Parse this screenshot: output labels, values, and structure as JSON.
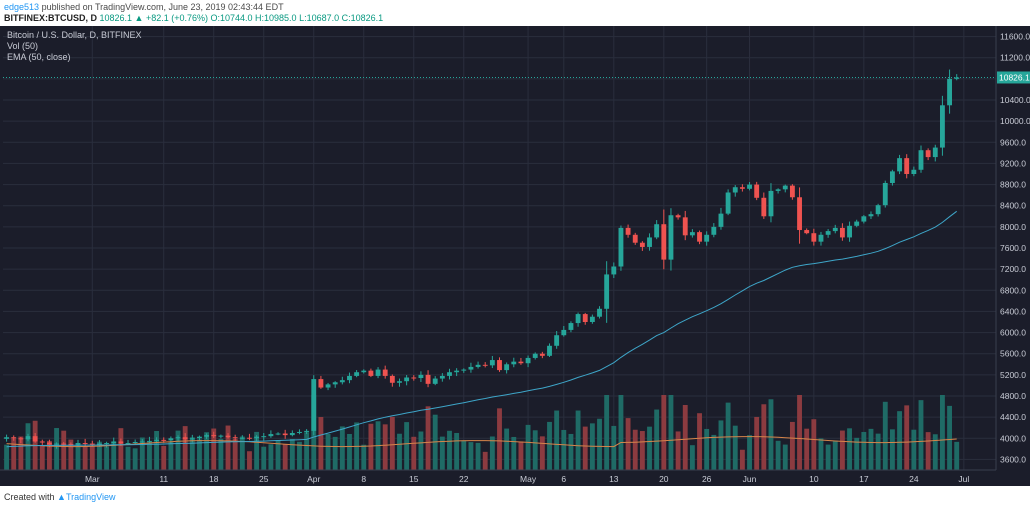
{
  "header": {
    "user": "edge513",
    "published_text": "published on TradingView.com, June 23, 2019 02:43:44 EDT",
    "symbol": "BITFINEX:BTCUSD, D",
    "ohlc_text": "10826.1 ▲ +82.1 (+0.76%) O:10744.0 H:10985.0 L:10687.0 C:10826.1"
  },
  "legend": {
    "series_title": "Bitcoin / U.S. Dollar, D, BITFINEX",
    "volume_label": "Vol (50)",
    "ema_label": "EMA (50, close)"
  },
  "footer": {
    "created_text": "Created with",
    "brand": "TradingView"
  },
  "colors": {
    "background": "#1b1d2a",
    "grid": "#2a2e3d",
    "up": "#26a69a",
    "down": "#ef5350",
    "vol_up": "#1f6b66",
    "vol_down": "#8c3b40",
    "ema": "#3ea6c9",
    "vol_ma": "#d7854a",
    "price_tag": "#26a69a"
  },
  "chart_data": {
    "type": "candlestick",
    "title": "Bitcoin / U.S. Dollar, D, BITFINEX",
    "ylim": [
      3400,
      11800
    ],
    "y_ticks": [
      11600,
      11200,
      10800,
      10400,
      10000,
      9600,
      9200,
      8800,
      8400,
      8000,
      7600,
      7200,
      6800,
      6400,
      6000,
      5600,
      5200,
      4800,
      4400,
      4000,
      3600
    ],
    "x_ticks": [
      {
        "label": "Mar",
        "index": 12
      },
      {
        "label": "11",
        "index": 22
      },
      {
        "label": "18",
        "index": 29
      },
      {
        "label": "25",
        "index": 36
      },
      {
        "label": "Apr",
        "index": 43
      },
      {
        "label": "8",
        "index": 50
      },
      {
        "label": "15",
        "index": 57
      },
      {
        "label": "22",
        "index": 64
      },
      {
        "label": "May",
        "index": 73
      },
      {
        "label": "6",
        "index": 78
      },
      {
        "label": "13",
        "index": 85
      },
      {
        "label": "20",
        "index": 92
      },
      {
        "label": "26",
        "index": 98
      },
      {
        "label": "Jun",
        "index": 104
      },
      {
        "label": "10",
        "index": 113
      },
      {
        "label": "17",
        "index": 120
      },
      {
        "label": "24",
        "index": 127
      },
      {
        "label": "Jul",
        "index": 134
      }
    ],
    "total_slots": 139,
    "last_price": "10826.1",
    "closes": [
      4020,
      4000,
      3980,
      4040,
      3940,
      3920,
      3880,
      3900,
      3890,
      3880,
      3910,
      3900,
      3880,
      3900,
      3910,
      3940,
      3900,
      3910,
      3930,
      3940,
      3950,
      3970,
      3960,
      4000,
      4020,
      3980,
      4000,
      4030,
      4060,
      4040,
      4050,
      4020,
      4010,
      4010,
      4000,
      4030,
      4040,
      4080,
      4090,
      4060,
      4100,
      4120,
      4140,
      5120,
      4960,
      5020,
      5060,
      5100,
      5180,
      5250,
      5280,
      5180,
      5300,
      5180,
      5050,
      5080,
      5150,
      5140,
      5200,
      5030,
      5130,
      5180,
      5250,
      5280,
      5300,
      5350,
      5390,
      5380,
      5480,
      5290,
      5400,
      5450,
      5420,
      5520,
      5600,
      5560,
      5750,
      5950,
      6050,
      6180,
      6350,
      6200,
      6300,
      6450,
      7100,
      7250,
      7980,
      7850,
      7700,
      7620,
      7800,
      8050,
      7380,
      8220,
      8180,
      7840,
      7900,
      7720,
      7850,
      8000,
      8250,
      8650,
      8750,
      8720,
      8800,
      8550,
      8200,
      8680,
      8710,
      8780,
      8560,
      7940,
      7880,
      7720,
      7850,
      7920,
      7980,
      7800,
      8020,
      8100,
      8200,
      8240,
      8410,
      8830,
      9050,
      9300,
      9000,
      9080,
      9450,
      9320,
      9500,
      10300,
      10800,
      10826.1
    ],
    "vol_ma_level": 3900,
    "ema_start": 3840,
    "ema_end": 8110
  }
}
